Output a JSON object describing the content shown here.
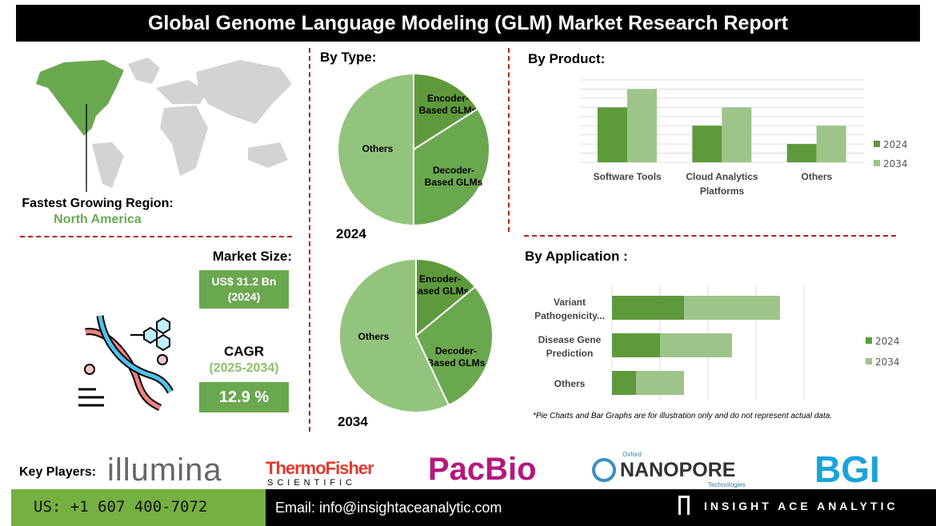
{
  "title": "Global Genome Language Modeling (GLM) Market Research Report",
  "region": {
    "label": "Fastest Growing Region:",
    "value": "North America"
  },
  "market": {
    "label": "Market Size:",
    "value": "US$ 31.2 Bn",
    "year": "(2024)",
    "cagr_label": "CAGR",
    "cagr_period": "(2025-2034)",
    "cagr_value": "12.9 %"
  },
  "colors": {
    "dark_green": "#5e9a3b",
    "mid_green": "#6aa84f",
    "light_green": "#9dc58a",
    "accent_red": "#b22222"
  },
  "sections": {
    "type": "By Type:",
    "product": "By  Product:",
    "application": "By Application :"
  },
  "note": "*Pie Charts and Bar Graphs are for illustration only and do not represent actual data.",
  "chart_data": [
    {
      "type": "pie",
      "title": "2024",
      "slices": [
        {
          "label": "Encoder-Based GLMs",
          "value": 16
        },
        {
          "label": "Decoder-Based GLMs",
          "value": 34
        },
        {
          "label": "Others",
          "value": 50
        }
      ]
    },
    {
      "type": "pie",
      "title": "2034",
      "slices": [
        {
          "label": "Encoder-Based GLMs",
          "value": 14
        },
        {
          "label": "Decoder-Based GLMs",
          "value": 29
        },
        {
          "label": "Others",
          "value": 57
        }
      ]
    },
    {
      "type": "bar",
      "categories": [
        "Software Tools",
        "Cloud Analytics Platforms",
        " Others"
      ],
      "series": [
        {
          "name": "2024",
          "values": [
            6,
            4,
            2
          ]
        },
        {
          "name": "2034",
          "values": [
            8,
            6,
            4
          ]
        }
      ],
      "ylim": [
        0,
        9
      ],
      "grid": true,
      "legend": "right"
    },
    {
      "type": "bar",
      "orientation": "horizontal",
      "stacked": true,
      "categories": [
        "Variant Pathogenicity...",
        "Disease Gene Prediction",
        "Others"
      ],
      "series": [
        {
          "name": "2024",
          "values": [
            1.5,
            1,
            0.5
          ]
        },
        {
          "name": "2034",
          "values": [
            2,
            1.5,
            1
          ]
        }
      ],
      "xlim": [
        0,
        5
      ],
      "grid": true,
      "legend": "right"
    }
  ],
  "key_players": {
    "label": "Key Players:",
    "companies": [
      "illumina",
      "ThermoFisher",
      "SCIENTIFIC",
      "PacBio",
      "Oxford",
      "NANOPORE",
      "Technologies",
      "BGI"
    ]
  },
  "footer": {
    "phone": "US: +1 607 400-7072",
    "email": "Email: info@insightaceanalytic.com",
    "brand": "INSIGHT ACE ANALYTIC"
  }
}
